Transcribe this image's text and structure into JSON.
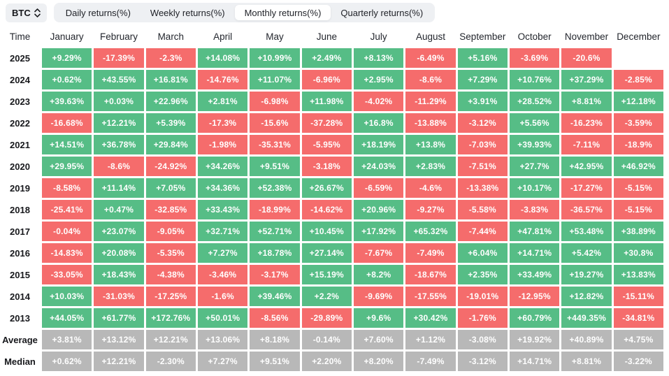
{
  "controls": {
    "symbol": {
      "label": "BTC",
      "icon": "updown-chevron-icon"
    },
    "tabs": [
      {
        "label": "Daily returns(%)",
        "active": false
      },
      {
        "label": "Weekly returns(%)",
        "active": false
      },
      {
        "label": "Monthly returns(%)",
        "active": true
      },
      {
        "label": "Quarterly returns(%)",
        "active": false
      }
    ]
  },
  "colors": {
    "positive": "#56BD86",
    "negative": "#F56C6C",
    "summary": "#B8B8B8",
    "tab_bar_bg": "#EEF0F3",
    "active_tab_bg": "#FFFFFF"
  },
  "table": {
    "type": "heatmap",
    "columns": [
      "Time",
      "January",
      "February",
      "March",
      "April",
      "May",
      "June",
      "July",
      "August",
      "September",
      "October",
      "November",
      "December"
    ],
    "rows": [
      {
        "label": "2025",
        "type": "year",
        "values": [
          "+9.29%",
          "-17.39%",
          "-2.3%",
          "+14.08%",
          "+10.99%",
          "+2.49%",
          "+8.13%",
          "-6.49%",
          "+5.16%",
          "-3.69%",
          "-20.6%",
          ""
        ]
      },
      {
        "label": "2024",
        "type": "year",
        "values": [
          "+0.62%",
          "+43.55%",
          "+16.81%",
          "-14.76%",
          "+11.07%",
          "-6.96%",
          "+2.95%",
          "-8.6%",
          "+7.29%",
          "+10.76%",
          "+37.29%",
          "-2.85%"
        ]
      },
      {
        "label": "2023",
        "type": "year",
        "values": [
          "+39.63%",
          "+0.03%",
          "+22.96%",
          "+2.81%",
          "-6.98%",
          "+11.98%",
          "-4.02%",
          "-11.29%",
          "+3.91%",
          "+28.52%",
          "+8.81%",
          "+12.18%"
        ]
      },
      {
        "label": "2022",
        "type": "year",
        "values": [
          "-16.68%",
          "+12.21%",
          "+5.39%",
          "-17.3%",
          "-15.6%",
          "-37.28%",
          "+16.8%",
          "-13.88%",
          "-3.12%",
          "+5.56%",
          "-16.23%",
          "-3.59%"
        ]
      },
      {
        "label": "2021",
        "type": "year",
        "values": [
          "+14.51%",
          "+36.78%",
          "+29.84%",
          "-1.98%",
          "-35.31%",
          "-5.95%",
          "+18.19%",
          "+13.8%",
          "-7.03%",
          "+39.93%",
          "-7.11%",
          "-18.9%"
        ]
      },
      {
        "label": "2020",
        "type": "year",
        "values": [
          "+29.95%",
          "-8.6%",
          "-24.92%",
          "+34.26%",
          "+9.51%",
          "-3.18%",
          "+24.03%",
          "+2.83%",
          "-7.51%",
          "+27.7%",
          "+42.95%",
          "+46.92%"
        ]
      },
      {
        "label": "2019",
        "type": "year",
        "values": [
          "-8.58%",
          "+11.14%",
          "+7.05%",
          "+34.36%",
          "+52.38%",
          "+26.67%",
          "-6.59%",
          "-4.6%",
          "-13.38%",
          "+10.17%",
          "-17.27%",
          "-5.15%"
        ]
      },
      {
        "label": "2018",
        "type": "year",
        "values": [
          "-25.41%",
          "+0.47%",
          "-32.85%",
          "+33.43%",
          "-18.99%",
          "-14.62%",
          "+20.96%",
          "-9.27%",
          "-5.58%",
          "-3.83%",
          "-36.57%",
          "-5.15%"
        ]
      },
      {
        "label": "2017",
        "type": "year",
        "values": [
          "-0.04%",
          "+23.07%",
          "-9.05%",
          "+32.71%",
          "+52.71%",
          "+10.45%",
          "+17.92%",
          "+65.32%",
          "-7.44%",
          "+47.81%",
          "+53.48%",
          "+38.89%"
        ]
      },
      {
        "label": "2016",
        "type": "year",
        "values": [
          "-14.83%",
          "+20.08%",
          "-5.35%",
          "+7.27%",
          "+18.78%",
          "+27.14%",
          "-7.67%",
          "-7.49%",
          "+6.04%",
          "+14.71%",
          "+5.42%",
          "+30.8%"
        ]
      },
      {
        "label": "2015",
        "type": "year",
        "values": [
          "-33.05%",
          "+18.43%",
          "-4.38%",
          "-3.46%",
          "-3.17%",
          "+15.19%",
          "+8.2%",
          "-18.67%",
          "+2.35%",
          "+33.49%",
          "+19.27%",
          "+13.83%"
        ]
      },
      {
        "label": "2014",
        "type": "year",
        "values": [
          "+10.03%",
          "-31.03%",
          "-17.25%",
          "-1.6%",
          "+39.46%",
          "+2.2%",
          "-9.69%",
          "-17.55%",
          "-19.01%",
          "-12.95%",
          "+12.82%",
          "-15.11%"
        ]
      },
      {
        "label": "2013",
        "type": "year",
        "values": [
          "+44.05%",
          "+61.77%",
          "+172.76%",
          "+50.01%",
          "-8.56%",
          "-29.89%",
          "+9.6%",
          "+30.42%",
          "-1.76%",
          "+60.79%",
          "+449.35%",
          "-34.81%"
        ]
      },
      {
        "label": "Average",
        "type": "summary",
        "values": [
          "+3.81%",
          "+13.12%",
          "+12.21%",
          "+13.06%",
          "+8.18%",
          "-0.14%",
          "+7.60%",
          "+1.12%",
          "-3.08%",
          "+19.92%",
          "+40.89%",
          "+4.75%"
        ]
      },
      {
        "label": "Median",
        "type": "summary",
        "values": [
          "+0.62%",
          "+12.21%",
          "-2.30%",
          "+7.27%",
          "+9.51%",
          "+2.20%",
          "+8.20%",
          "-7.49%",
          "-3.12%",
          "+14.71%",
          "+8.81%",
          "-3.22%"
        ]
      }
    ]
  }
}
